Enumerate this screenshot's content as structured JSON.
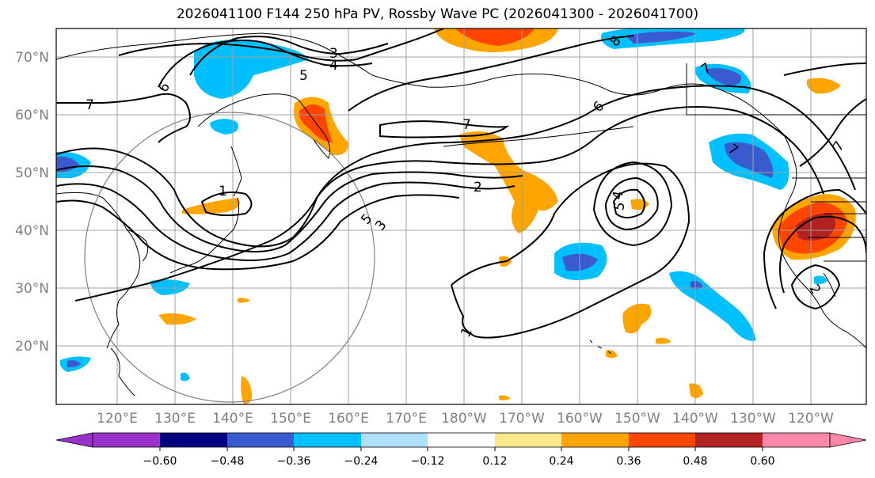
{
  "title": "2026041100 F144 250 hPa PV, Rossby Wave PC (2026041300 - 2026041700)",
  "map": {
    "lat_labels": [
      "70°N",
      "60°N",
      "50°N",
      "40°N",
      "30°N",
      "20°N"
    ],
    "lon_labels": [
      "120°E",
      "130°E",
      "140°E",
      "150°E",
      "160°E",
      "170°E",
      "180°W",
      "170°W",
      "160°W",
      "150°W",
      "140°W",
      "130°W",
      "120°W"
    ],
    "contour_labels": [
      "3",
      "4",
      "5",
      "6",
      "7",
      "7",
      "6",
      "8",
      "7",
      "1",
      "5",
      "3",
      "2",
      "5",
      "4",
      "7",
      "1",
      "2",
      "7"
    ],
    "pc_colors": {
      "neg_strong": "#3a5bd0",
      "neg_mid": "#00bfff",
      "pos_mid": "#ffa500",
      "pos_strong": "#ff4500",
      "pos_max": "#b22222"
    }
  },
  "colorbar": {
    "colors": [
      "#9932cc",
      "#000080",
      "#3a5bd0",
      "#00bfff",
      "#b0e0ff",
      "#ffffff",
      "#ffe88c",
      "#ffa500",
      "#ff4500",
      "#b22222",
      "#ff88aa"
    ],
    "tick_labels": [
      "−0.60",
      "−0.48",
      "−0.36",
      "−0.24",
      "−0.12",
      "0.12",
      "0.24",
      "0.36",
      "0.48",
      "0.60"
    ]
  }
}
